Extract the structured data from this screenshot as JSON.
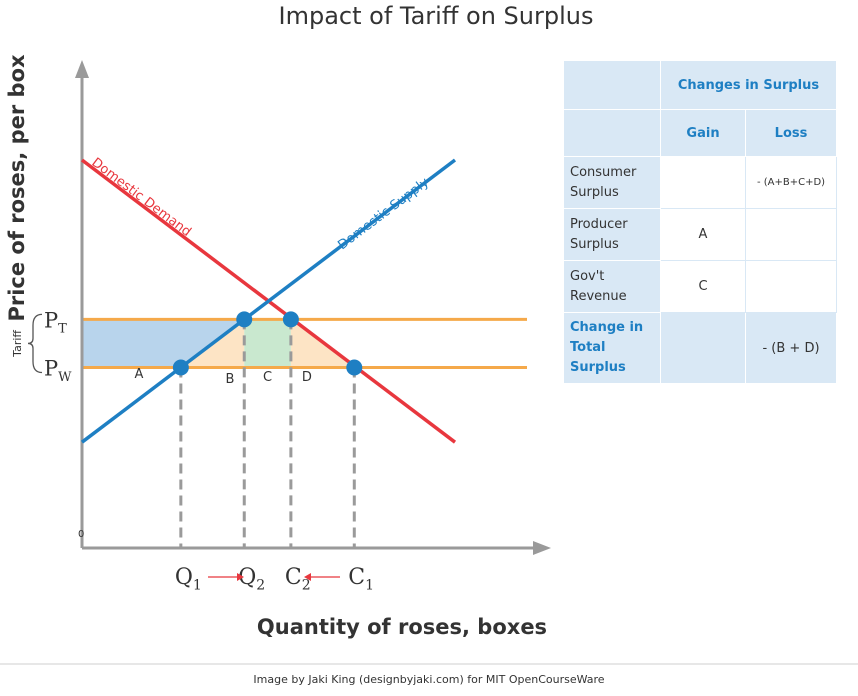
{
  "chart_data": {
    "type": "line",
    "title": "Impact of Tariff on Surplus",
    "xlabel": "Quantity of roses, boxes",
    "ylabel": "Price of roses, per box",
    "origin_label": "0",
    "xlim": [
      0,
      10
    ],
    "ylim": [
      0,
      10
    ],
    "series": [
      {
        "name": "Domestic Demand",
        "color": "#e8373e",
        "x": [
          0,
          10
        ],
        "y": [
          10,
          1.5
        ]
      },
      {
        "name": "Domestic Supply",
        "color": "#1e7fc3",
        "x": [
          0,
          10
        ],
        "y": [
          1.5,
          10
        ]
      }
    ],
    "price_lines": [
      {
        "id": "pt",
        "main": "P",
        "sub": "T",
        "y": 5.2,
        "color": "#f5a94a"
      },
      {
        "id": "pw",
        "main": "P",
        "sub": "W",
        "y": 3.75,
        "color": "#f5a94a"
      }
    ],
    "tariff_label": "Tariff",
    "quantities": [
      {
        "main": "Q",
        "sub": "1",
        "x": 2.65
      },
      {
        "main": "Q",
        "sub": "2",
        "x": 4.35
      },
      {
        "main": "C",
        "sub": "2",
        "x": 5.6
      },
      {
        "main": "C",
        "sub": "1",
        "x": 7.3
      }
    ],
    "equilibrium_points": [
      {
        "x": 2.65,
        "y": 3.75
      },
      {
        "x": 4.35,
        "y": 5.2
      },
      {
        "x": 5.6,
        "y": 5.2
      },
      {
        "x": 7.3,
        "y": 3.75
      }
    ],
    "regions": [
      {
        "label": "A",
        "color": "#b8d4ec"
      },
      {
        "label": "B",
        "color": "#fde4c5"
      },
      {
        "label": "C",
        "color": "#c9e8cf"
      },
      {
        "label": "D",
        "color": "#fde4c5"
      }
    ],
    "table": {
      "header": "Changes in Surplus",
      "col_gain": "Gain",
      "col_loss": "Loss",
      "rows": [
        {
          "label": "Consumer Surplus",
          "gain": "",
          "loss": "- (A+B+C+D)"
        },
        {
          "label": "Producer Surplus",
          "gain": "A",
          "loss": ""
        },
        {
          "label": "Gov't Revenue",
          "gain": "C",
          "loss": ""
        },
        {
          "label": "Change in Total Surplus",
          "gain": "",
          "loss": "- (B + D)"
        }
      ]
    },
    "credit": "Image by Jaki King (designbyjaki.com) for MIT OpenCourseWare"
  }
}
